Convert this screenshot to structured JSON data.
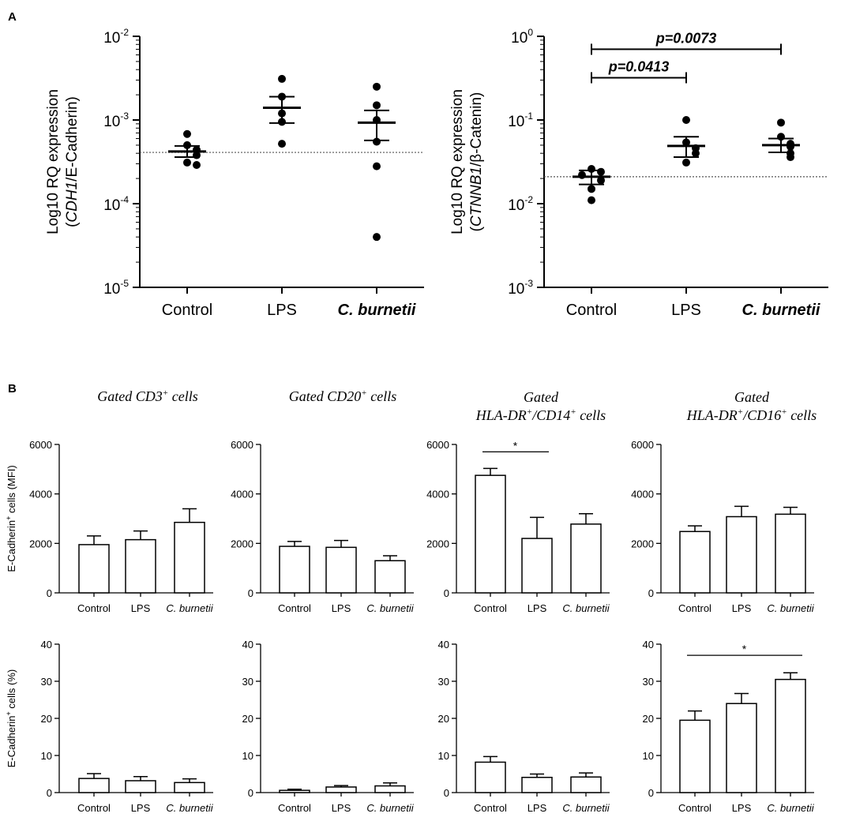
{
  "panel_letters": {
    "a": "A",
    "b": "B"
  },
  "chart_data": [
    {
      "id": "A1",
      "type": "scatter",
      "scale": "log",
      "ylabel": "Log10 RQ expression",
      "ylabel_gene": "CDH1",
      "ylabel_protein": "/E-Cadherin",
      "categories": [
        "Control",
        "LPS",
        "C. burnetii"
      ],
      "ylim": [
        1e-05,
        0.01
      ],
      "ticks": [
        {
          "v": 0.01,
          "base": "10",
          "exp": "-2"
        },
        {
          "v": 0.001,
          "base": "10",
          "exp": "-3"
        },
        {
          "v": 0.0001,
          "base": "10",
          "exp": "-4"
        },
        {
          "v": 1e-05,
          "base": "10",
          "exp": "-5"
        }
      ],
      "points": [
        [
          0.00068,
          0.0005,
          0.00044,
          0.00038,
          0.00031,
          0.00029
        ],
        [
          0.0031,
          0.0019,
          0.0012,
          0.00095,
          0.00052
        ],
        [
          0.0025,
          0.0015,
          0.001,
          0.00055,
          0.00028,
          4e-05
        ]
      ],
      "mean": [
        0.00042,
        0.0014,
        0.00093
      ],
      "sem_low": [
        0.00036,
        0.00092,
        0.00057
      ],
      "sem_high": [
        0.00049,
        0.0019,
        0.0013
      ],
      "baseline": 0.00041,
      "significance": []
    },
    {
      "id": "A2",
      "type": "scatter",
      "scale": "log",
      "ylabel": "Log10 RQ expression",
      "ylabel_gene": "CTNNB1",
      "ylabel_protein": "/β-Catenin",
      "categories": [
        "Control",
        "LPS",
        "C. burnetii"
      ],
      "ylim": [
        0.001,
        1
      ],
      "ticks": [
        {
          "v": 1,
          "base": "10",
          "exp": "0"
        },
        {
          "v": 0.1,
          "base": "10",
          "exp": "-1"
        },
        {
          "v": 0.01,
          "base": "10",
          "exp": "-2"
        },
        {
          "v": 0.001,
          "base": "10",
          "exp": "-3"
        }
      ],
      "points": [
        [
          0.026,
          0.024,
          0.022,
          0.019,
          0.015,
          0.011
        ],
        [
          0.1,
          0.054,
          0.046,
          0.04,
          0.031
        ],
        [
          0.093,
          0.063,
          0.052,
          0.048,
          0.04,
          0.036
        ]
      ],
      "mean": [
        0.021,
        0.049,
        0.05
      ],
      "sem_low": [
        0.017,
        0.036,
        0.041
      ],
      "sem_high": [
        0.025,
        0.063,
        0.06
      ],
      "baseline": 0.021,
      "significance": [
        {
          "from": 0,
          "to": 2,
          "label": "p=0.0073",
          "level": 0.7
        },
        {
          "from": 0,
          "to": 1,
          "label": "p=0.0413",
          "level": 0.32
        }
      ]
    }
  ],
  "bar_panels": {
    "titles": [
      {
        "line1": "Gated CD3",
        "sup1": "+",
        "rest1": " cells"
      },
      {
        "line1": "Gated CD20",
        "sup1": "+",
        "rest1": " cells"
      },
      {
        "line1": "Gated",
        "line2": "HLA-DR",
        "sup2a": "+",
        "mid2": "/CD14",
        "sup2b": "+",
        "rest2": " cells"
      },
      {
        "line1": "Gated",
        "line2": "HLA-DR",
        "sup2a": "+",
        "mid2": "/CD16",
        "sup2b": "+",
        "rest2": " cells"
      }
    ],
    "row_ylabels": [
      {
        "pre": "E-Cadherin",
        "sup": "+",
        "post": " cells (MFI)"
      },
      {
        "pre": "E-Cadherin",
        "sup": "+",
        "post": " cells (%)"
      }
    ],
    "categories": [
      "Control",
      "LPS",
      "C. burnetii"
    ],
    "rows": [
      {
        "ylim": [
          0,
          6000
        ],
        "ticks": [
          0,
          2000,
          4000,
          6000
        ],
        "tick_labels": [
          "0",
          "2000",
          "4000",
          "6000"
        ],
        "series": [
          {
            "values": [
              1950,
              2150,
              2850
            ],
            "errors": [
              350,
              350,
              550
            ],
            "sig": null
          },
          {
            "values": [
              1880,
              1840,
              1300
            ],
            "errors": [
              200,
              280,
              200
            ],
            "sig": null
          },
          {
            "values": [
              4750,
              2200,
              2780
            ],
            "errors": [
              280,
              850,
              420
            ],
            "sig": {
              "from": 0,
              "to": 1,
              "label": "*",
              "level": 5700
            }
          },
          {
            "values": [
              2480,
              3080,
              3180
            ],
            "errors": [
              230,
              420,
              280
            ],
            "sig": null
          }
        ]
      },
      {
        "ylim": [
          0,
          40
        ],
        "ticks": [
          0,
          10,
          20,
          30,
          40
        ],
        "tick_labels": [
          "0",
          "10",
          "20",
          "30",
          "40"
        ],
        "series": [
          {
            "values": [
              3.8,
              3.2,
              2.7
            ],
            "errors": [
              1.3,
              1.1,
              1.0
            ],
            "sig": null
          },
          {
            "values": [
              0.6,
              1.5,
              1.8
            ],
            "errors": [
              0.3,
              0.4,
              0.8
            ],
            "sig": null
          },
          {
            "values": [
              8.2,
              4.1,
              4.2
            ],
            "errors": [
              1.5,
              0.9,
              1.1
            ],
            "sig": null
          },
          {
            "values": [
              19.5,
              24.0,
              30.5
            ],
            "errors": [
              2.5,
              2.7,
              1.8
            ],
            "sig": {
              "from": 0,
              "to": 2,
              "label": "*",
              "level": 37
            }
          }
        ]
      }
    ]
  }
}
